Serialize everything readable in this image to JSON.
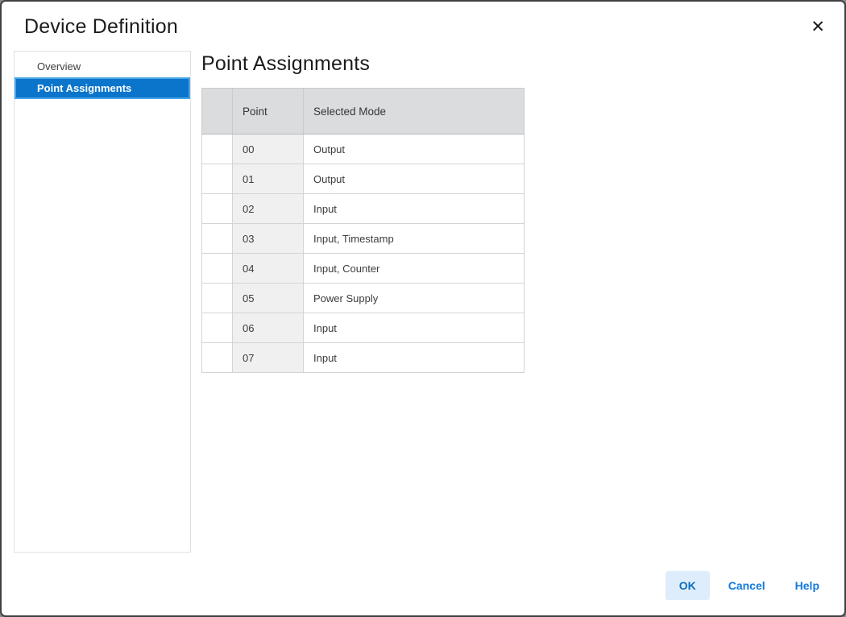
{
  "dialog": {
    "title": "Device Definition",
    "close_glyph": "✕"
  },
  "sidebar": {
    "items": [
      {
        "label": "Overview",
        "selected": false
      },
      {
        "label": "Point Assignments",
        "selected": true
      }
    ]
  },
  "main": {
    "heading": "Point Assignments",
    "table": {
      "columns": [
        "Point",
        "Selected Mode"
      ],
      "rows": [
        {
          "point": "00",
          "mode": "Output"
        },
        {
          "point": "01",
          "mode": "Output"
        },
        {
          "point": "02",
          "mode": "Input"
        },
        {
          "point": "03",
          "mode": "Input, Timestamp"
        },
        {
          "point": "04",
          "mode": "Input, Counter"
        },
        {
          "point": "05",
          "mode": "Power Supply"
        },
        {
          "point": "06",
          "mode": "Input"
        },
        {
          "point": "07",
          "mode": "Input"
        }
      ]
    }
  },
  "footer": {
    "ok_label": "OK",
    "cancel_label": "Cancel",
    "help_label": "Help"
  },
  "colors": {
    "selection_bg": "#0a75cb",
    "selection_border": "#4aa5e6",
    "table_header_bg": "#dadcde",
    "point_cell_bg": "#f0f0f0",
    "ok_button_bg": "#ddedfb",
    "ok_button_text": "#0d6ebe",
    "link_button_text": "#1279dd",
    "dialog_border": "#3e4043"
  }
}
